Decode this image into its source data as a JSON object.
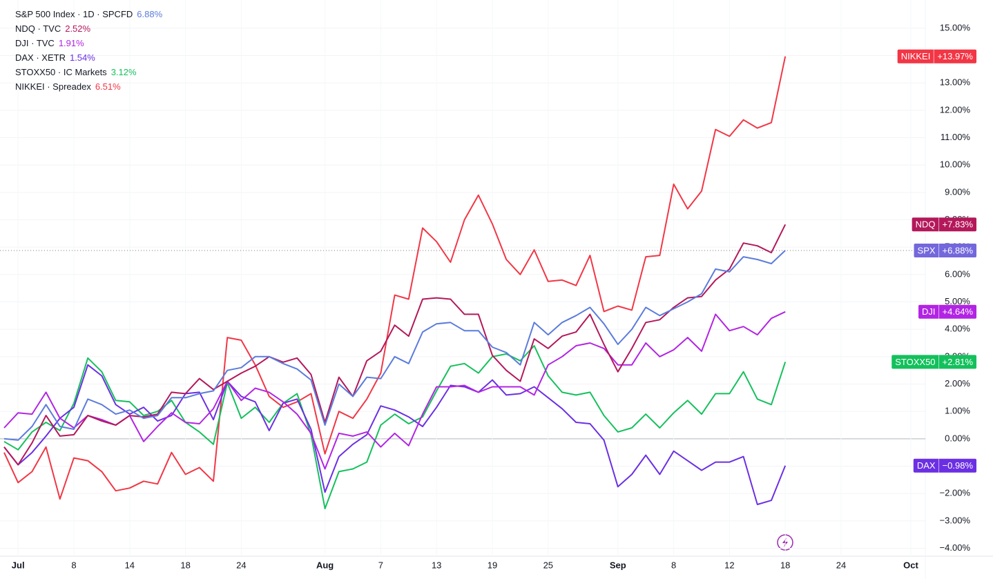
{
  "chart_data": {
    "type": "line",
    "categories": [
      null,
      "Jul",
      null,
      null,
      null,
      "8",
      null,
      null,
      null,
      "14",
      null,
      null,
      null,
      "18",
      null,
      null,
      null,
      "24",
      null,
      null,
      null,
      null,
      null,
      "Aug",
      null,
      null,
      null,
      "7",
      null,
      null,
      null,
      "13",
      null,
      null,
      null,
      "19",
      null,
      null,
      null,
      "25",
      null,
      null,
      null,
      null,
      "Sep",
      null,
      null,
      null,
      "8",
      null,
      null,
      null,
      "12",
      null,
      null,
      null,
      "18",
      null,
      null,
      null,
      "24",
      null,
      null,
      null,
      null,
      "Oct"
    ],
    "ylim": [
      -4.29,
      16.03
    ],
    "yticks": [
      {
        "value": 15,
        "label": "15.00%"
      },
      {
        "value": 14,
        "label": "14.00%"
      },
      {
        "value": 13,
        "label": "13.00%"
      },
      {
        "value": 12,
        "label": "12.00%"
      },
      {
        "value": 11,
        "label": "11.00%"
      },
      {
        "value": 10,
        "label": "10.00%"
      },
      {
        "value": 9,
        "label": "9.00%"
      },
      {
        "value": 8,
        "label": "8.00%"
      },
      {
        "value": 7,
        "label": "7.00%"
      },
      {
        "value": 6,
        "label": "6.00%"
      },
      {
        "value": 5,
        "label": "5.00%"
      },
      {
        "value": 4,
        "label": "4.00%"
      },
      {
        "value": 3,
        "label": "3.00%"
      },
      {
        "value": 2,
        "label": "2.00%"
      },
      {
        "value": 1,
        "label": "1.00%"
      },
      {
        "value": 0,
        "label": "0.00%"
      },
      {
        "value": -1,
        "label": "−1.00%"
      },
      {
        "value": -2,
        "label": "−2.00%"
      },
      {
        "value": -3,
        "label": "−3.00%"
      },
      {
        "value": -4,
        "label": "−4.00%"
      }
    ],
    "grid": true,
    "series": [
      {
        "name": "S&P 500 Index · 1D · SPCFD",
        "short_name": "SPX",
        "legend_value": "6.88%",
        "last_label": "+6.88%",
        "color": "#5b7bdc",
        "badge_color": "#7367dc",
        "values": [
          0,
          -0.05,
          0.45,
          1.25,
          0.45,
          0.35,
          1.45,
          1.25,
          0.9,
          1.05,
          0.75,
          0.85,
          1.5,
          1.5,
          1.65,
          1.75,
          2.5,
          2.6,
          3.0,
          3.0,
          2.75,
          2.55,
          2.15,
          0.5,
          2.0,
          1.55,
          2.25,
          2.2,
          3.0,
          2.75,
          3.9,
          4.2,
          4.25,
          3.95,
          3.95,
          3.35,
          3.15,
          2.7,
          4.25,
          3.8,
          4.25,
          4.5,
          4.8,
          4.2,
          3.45,
          4.0,
          4.8,
          4.5,
          4.75,
          5.0,
          5.3,
          6.2,
          6.1,
          6.65,
          6.55,
          6.4,
          6.88,
          null,
          null,
          null,
          null,
          null,
          null,
          null,
          null,
          null
        ]
      },
      {
        "name": "NDQ · TVC",
        "short_name": "NDQ",
        "legend_value": "2.52%",
        "last_label": "+7.83%",
        "color": "#b3185a",
        "badge_color": "#b3185a",
        "values": [
          -0.3,
          -0.95,
          -0.15,
          0.85,
          0.1,
          0.15,
          0.85,
          0.65,
          0.5,
          0.85,
          0.8,
          0.9,
          1.7,
          1.65,
          2.2,
          1.8,
          2.1,
          2.4,
          2.65,
          3.0,
          2.8,
          2.95,
          2.35,
          0.6,
          2.25,
          1.55,
          2.85,
          3.2,
          4.15,
          3.75,
          5.1,
          5.15,
          5.1,
          4.55,
          4.55,
          3.05,
          2.5,
          2.1,
          3.65,
          3.3,
          3.75,
          3.9,
          4.55,
          3.45,
          2.45,
          3.3,
          4.25,
          4.35,
          4.8,
          5.15,
          5.2,
          5.8,
          6.2,
          7.15,
          7.05,
          6.8,
          7.83,
          null,
          null,
          null,
          null,
          null,
          null,
          null,
          null,
          null
        ]
      },
      {
        "name": "DJI · TVC",
        "short_name": "DJI",
        "legend_value": "1.91%",
        "last_label": "+4.64%",
        "color": "#b224e3",
        "badge_color": "#b224e3",
        "values": [
          0.4,
          0.95,
          0.9,
          1.7,
          0.75,
          0.4,
          0.85,
          0.7,
          0.5,
          0.85,
          -0.1,
          0.45,
          0.95,
          0.6,
          0.55,
          1.1,
          2.1,
          1.4,
          1.85,
          1.7,
          1.35,
          0.9,
          0.2,
          -1.1,
          0.2,
          0.1,
          0.25,
          -0.3,
          0.2,
          -0.25,
          0.9,
          1.9,
          1.9,
          1.95,
          1.7,
          1.9,
          1.9,
          1.9,
          1.6,
          2.7,
          3.0,
          3.4,
          3.5,
          3.3,
          2.7,
          2.7,
          3.5,
          3.0,
          3.25,
          3.7,
          3.2,
          4.55,
          3.95,
          4.1,
          3.8,
          4.4,
          4.64,
          null,
          null,
          null,
          null,
          null,
          null,
          null,
          null,
          null
        ]
      },
      {
        "name": "DAX · XETR",
        "short_name": "DAX",
        "legend_value": "1.54%",
        "last_label": "−0.98%",
        "color": "#6b2fe3",
        "badge_color": "#6b2fe3",
        "values": [
          -0.3,
          -0.95,
          -0.5,
          0.1,
          0.75,
          1.15,
          2.7,
          2.3,
          1.25,
          0.9,
          1.15,
          0.65,
          0.85,
          1.65,
          1.7,
          0.7,
          2.1,
          1.55,
          1.35,
          0.3,
          1.3,
          1.45,
          0.35,
          -1.95,
          -0.65,
          -0.2,
          0.15,
          1.2,
          1.05,
          0.8,
          0.45,
          1.15,
          1.95,
          1.9,
          1.7,
          2.15,
          1.6,
          1.65,
          1.9,
          1.5,
          1.1,
          0.6,
          0.55,
          -0.05,
          -1.75,
          -1.3,
          -0.6,
          -1.3,
          -0.45,
          -0.8,
          -1.15,
          -0.85,
          -0.85,
          -0.65,
          -2.4,
          -2.25,
          -0.98,
          null,
          null,
          null,
          null,
          null,
          null,
          null,
          null,
          null
        ]
      },
      {
        "name": "STOXX50 · IC Markets",
        "short_name": "STOXX50",
        "legend_value": "3.12%",
        "last_label": "+2.81%",
        "color": "#14c05c",
        "badge_color": "#14c05c",
        "values": [
          -0.1,
          -0.4,
          0.25,
          0.6,
          0.3,
          1.3,
          2.95,
          2.45,
          1.4,
          1.35,
          0.85,
          1.0,
          1.4,
          0.6,
          0.25,
          -0.2,
          2.05,
          0.75,
          1.15,
          0.6,
          1.3,
          1.65,
          0.15,
          -2.55,
          -1.2,
          -1.1,
          -0.85,
          0.5,
          0.9,
          0.55,
          0.8,
          1.75,
          2.65,
          2.75,
          2.4,
          3.0,
          3.1,
          2.85,
          3.4,
          2.3,
          1.7,
          1.6,
          1.7,
          0.85,
          0.25,
          0.4,
          0.9,
          0.4,
          0.95,
          1.4,
          0.9,
          1.65,
          1.65,
          2.45,
          1.45,
          1.25,
          2.81,
          null,
          null,
          null,
          null,
          null,
          null,
          null,
          null,
          null
        ]
      },
      {
        "name": "NIKKEI · Spreadex",
        "short_name": "NIKKEI",
        "legend_value": "6.51%",
        "last_label": "+13.97%",
        "color": "#f23645",
        "badge_color": "#f23645",
        "values": [
          -0.5,
          -1.6,
          -1.2,
          -0.3,
          -2.2,
          -0.7,
          -0.8,
          -1.2,
          -1.9,
          -1.8,
          -1.55,
          -1.65,
          -0.5,
          -1.3,
          -1.05,
          -1.55,
          3.7,
          3.6,
          2.7,
          1.55,
          1.15,
          1.35,
          1.65,
          -0.55,
          1.0,
          0.75,
          1.45,
          2.4,
          5.25,
          5.1,
          7.7,
          7.2,
          6.45,
          8.0,
          8.9,
          7.85,
          6.55,
          6.0,
          6.9,
          5.75,
          5.8,
          5.6,
          6.7,
          4.65,
          4.85,
          4.7,
          6.65,
          6.7,
          9.3,
          8.4,
          9.05,
          11.3,
          11.05,
          11.65,
          11.35,
          11.55,
          13.97,
          null,
          null,
          null,
          null,
          null,
          null,
          null,
          null,
          null
        ]
      }
    ]
  }
}
